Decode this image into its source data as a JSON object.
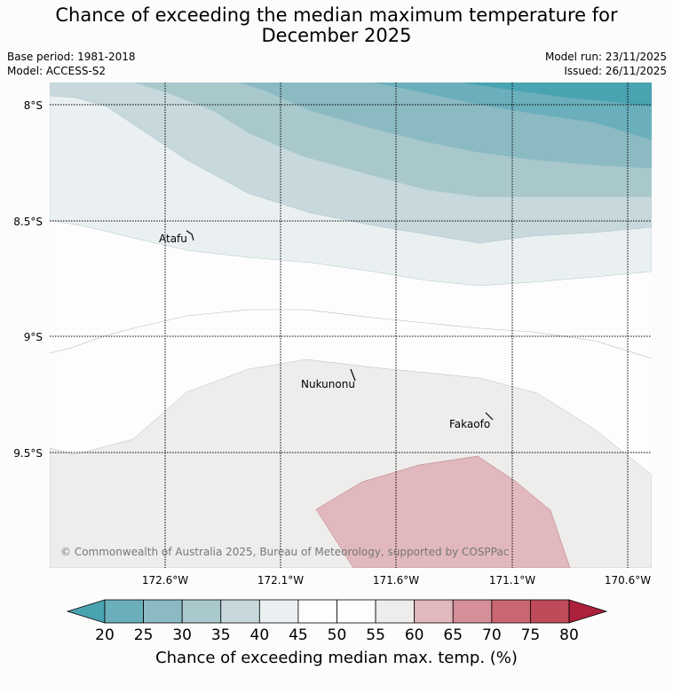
{
  "header": {
    "title_line1": "Chance of exceeding the median maximum temperature for",
    "title_line2": "December 2025",
    "base_period": "Base period: 1981-2018",
    "model": "Model: ACCESS-S2",
    "model_run": "Model run: 23/11/2025",
    "issued": "Issued: 26/11/2025"
  },
  "map": {
    "lat_labels": [
      "8°S",
      "8.5°S",
      "9°S",
      "9.5°S"
    ],
    "lon_labels": [
      "172.6°W",
      "172.1°W",
      "171.6°W",
      "171.1°W",
      "170.6°W"
    ],
    "places": [
      "Atafu",
      "Nukunonu",
      "Fakaofo"
    ],
    "copyright": "© Commonwealth of Australia 2025, Bureau of Meteorology, supported by COSPPac"
  },
  "colorbar": {
    "title": "Chance of exceeding median max. temp. (%)",
    "ticks": [
      "20",
      "25",
      "30",
      "35",
      "40",
      "45",
      "50",
      "55",
      "60",
      "65",
      "70",
      "75",
      "80"
    ],
    "colors": [
      "#4aa3b1",
      "#6aafbb",
      "#8bbac3",
      "#a8c8cc",
      "#c7d9dd",
      "#eaf0f2",
      "#fdfdfd",
      "#fdfdfd",
      "#eeedeb",
      "#e1b8bd",
      "#d58f98",
      "#c96671",
      "#bf4a5a",
      "#ad213d"
    ]
  }
}
